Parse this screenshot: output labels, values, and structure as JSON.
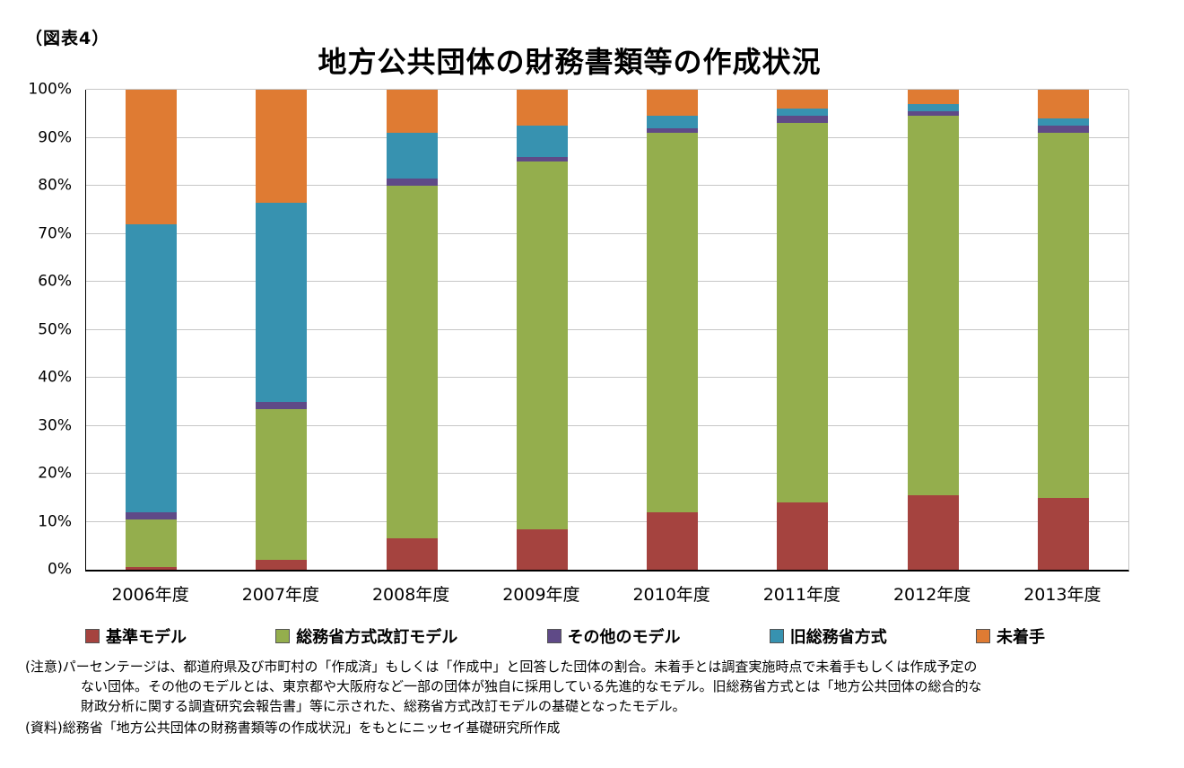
{
  "figure_label": "（図表4）",
  "chart_data": {
    "type": "bar",
    "stacked": true,
    "percent": true,
    "title": "地方公共団体の財務書類等の作成状況",
    "categories": [
      "2006年度",
      "2007年度",
      "2008年度",
      "2009年度",
      "2010年度",
      "2011年度",
      "2012年度",
      "2013年度"
    ],
    "series": [
      {
        "name": "基準モデル",
        "color": "#A5433F",
        "values": [
          0.5,
          2.0,
          6.5,
          8.5,
          12.0,
          14.0,
          15.5,
          15.0
        ]
      },
      {
        "name": "総務省方式改訂モデル",
        "color": "#94AE4D",
        "values": [
          10.0,
          31.5,
          73.5,
          76.5,
          79.0,
          79.0,
          79.0,
          76.0
        ]
      },
      {
        "name": "その他のモデル",
        "color": "#5F4A87",
        "values": [
          1.5,
          1.5,
          1.5,
          1.0,
          1.0,
          1.5,
          1.0,
          1.5
        ]
      },
      {
        "name": "旧総務省方式",
        "color": "#3792B0",
        "values": [
          60.0,
          41.5,
          9.5,
          6.5,
          2.5,
          1.5,
          1.5,
          1.5
        ]
      },
      {
        "name": "未着手",
        "color": "#DF7B33",
        "values": [
          28.0,
          23.5,
          9.0,
          7.5,
          5.5,
          4.0,
          3.0,
          6.0
        ]
      }
    ],
    "ylim": [
      0,
      100
    ],
    "yticks": [
      "0%",
      "10%",
      "20%",
      "30%",
      "40%",
      "50%",
      "60%",
      "70%",
      "80%",
      "90%",
      "100%"
    ],
    "grid": true,
    "gridline_color": "#c6c6c6",
    "legend_position": "bottom"
  },
  "notes": {
    "lines": [
      {
        "text": "(注意)パーセンテージは、都道府県及び市町村の「作成済」もしくは「作成中」と回答した団体の割合。未着手とは調査実施時点で未着手もしくは作成予定の",
        "indent": false,
        "source": false
      },
      {
        "text": "ない団体。その他のモデルとは、東京都や大阪府など一部の団体が独自に採用している先進的なモデル。旧総務省方式とは「地方公共団体の総合的な",
        "indent": true,
        "source": false
      },
      {
        "text": "財政分析に関する調査研究会報告書」等に示された、総務省方式改訂モデルの基礎となったモデル。",
        "indent": true,
        "source": false
      },
      {
        "text": "(資料)総務省「地方公共団体の財務書類等の作成状況」をもとにニッセイ基礎研究所作成",
        "indent": false,
        "source": true
      }
    ]
  }
}
